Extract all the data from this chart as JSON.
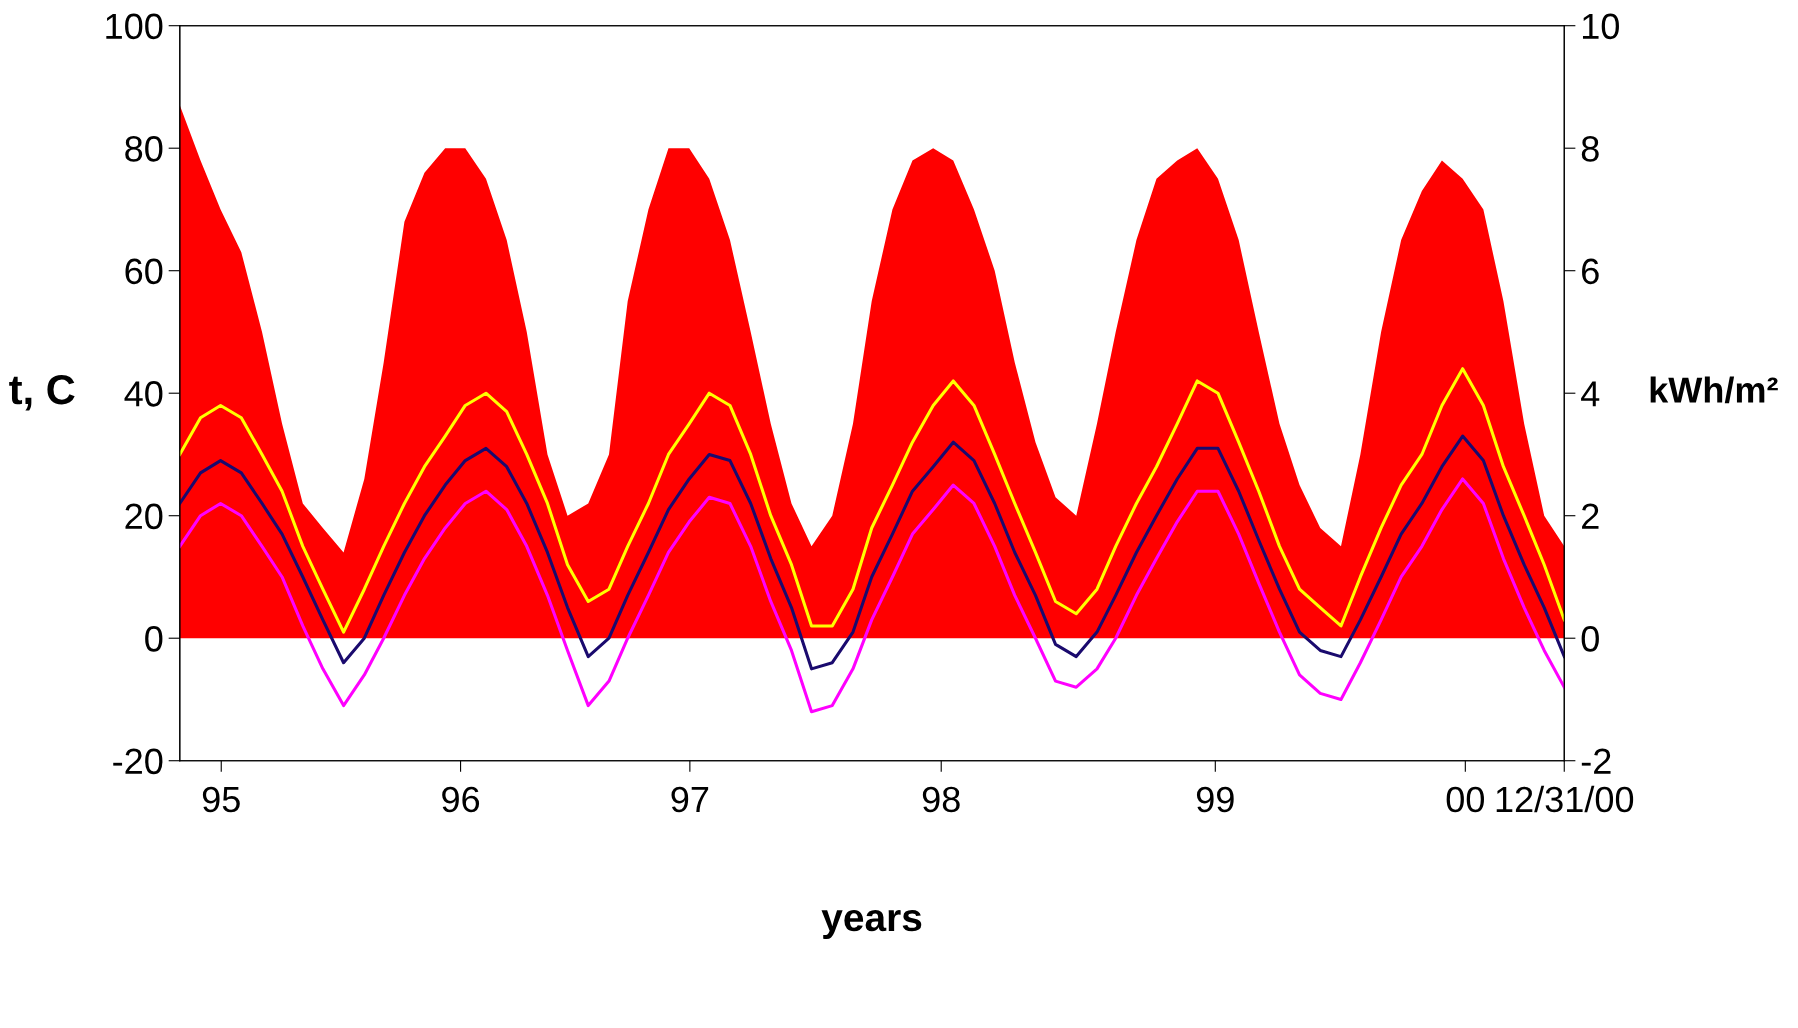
{
  "chart_data": {
    "type": "line",
    "xlabel": "years",
    "ylabel": "t, C",
    "y2label": "kWh/m²",
    "x": [
      "1995-05-01",
      "1995-06-01",
      "1995-07-01",
      "1995-08-01",
      "1995-09-01",
      "1995-10-01",
      "1995-11-01",
      "1995-12-01",
      "1996-01-01",
      "1996-02-01",
      "1996-03-01",
      "1996-04-01",
      "1996-05-01",
      "1996-06-01",
      "1996-07-01",
      "1996-08-01",
      "1996-09-01",
      "1996-10-01",
      "1996-11-01",
      "1996-12-01",
      "1997-01-01",
      "1997-02-01",
      "1997-03-01",
      "1997-04-01",
      "1997-05-01",
      "1997-06-01",
      "1997-07-01",
      "1997-08-01",
      "1997-09-01",
      "1997-10-01",
      "1997-11-01",
      "1997-12-01",
      "1998-01-01",
      "1998-02-01",
      "1998-03-01",
      "1998-04-01",
      "1998-05-01",
      "1998-06-01",
      "1998-07-01",
      "1998-08-01",
      "1998-09-01",
      "1998-10-01",
      "1998-11-01",
      "1998-12-01",
      "1999-01-01",
      "1999-02-01",
      "1999-03-01",
      "1999-04-01",
      "1999-05-01",
      "1999-06-01",
      "1999-07-01",
      "1999-08-01",
      "1999-09-01",
      "1999-10-01",
      "1999-11-01",
      "1999-12-01",
      "2000-01-01",
      "2000-02-01",
      "2000-03-01",
      "2000-04-01",
      "2000-05-01",
      "2000-06-01",
      "2000-07-01",
      "2000-08-01",
      "2000-09-01",
      "2000-10-01",
      "2000-11-01",
      "2000-12-01",
      "2000-12-31"
    ],
    "series": [
      {
        "type": "area",
        "axis": "y2",
        "color": "#ff0000",
        "values": [
          8.7,
          7.8,
          7.0,
          6.3,
          5.0,
          3.5,
          2.2,
          1.8,
          1.4,
          2.6,
          4.5,
          6.8,
          7.6,
          8.0,
          8.0,
          7.5,
          6.5,
          5.0,
          3.0,
          2.0,
          2.2,
          3.0,
          5.5,
          7.0,
          8.0,
          8.0,
          7.5,
          6.5,
          5.0,
          3.5,
          2.2,
          1.5,
          2.0,
          3.5,
          5.5,
          7.0,
          7.8,
          8.0,
          7.8,
          7.0,
          6.0,
          4.5,
          3.2,
          2.3,
          2.0,
          3.5,
          5.0,
          6.5,
          7.5,
          7.8,
          8.0,
          7.5,
          6.5,
          5.0,
          3.5,
          2.5,
          1.8,
          1.5,
          3.0,
          5.0,
          6.5,
          7.3,
          7.8,
          7.5,
          7.0,
          5.5,
          3.5,
          2.0,
          1.5
        ]
      },
      {
        "color": "#ffff00",
        "values": [
          30,
          36,
          38,
          36,
          30,
          24,
          15,
          8,
          1,
          8,
          15,
          22,
          28,
          33,
          38,
          40,
          37,
          30,
          22,
          12,
          6,
          8,
          15,
          22,
          30,
          35,
          40,
          38,
          30,
          20,
          12,
          2,
          2,
          8,
          18,
          25,
          32,
          38,
          42,
          38,
          30,
          22,
          14,
          6,
          4,
          8,
          15,
          22,
          28,
          35,
          42,
          40,
          32,
          24,
          15,
          8,
          5,
          2,
          10,
          18,
          25,
          30,
          38,
          44,
          38,
          28,
          20,
          12,
          3
        ]
      },
      {
        "color": "#1a0a6e",
        "values": [
          22,
          27,
          29,
          27,
          22,
          17,
          10,
          3,
          -4,
          0,
          7,
          14,
          20,
          25,
          29,
          31,
          28,
          22,
          14,
          5,
          -3,
          0,
          7,
          14,
          21,
          26,
          30,
          29,
          22,
          13,
          5,
          -5,
          -4,
          1,
          10,
          17,
          24,
          28,
          32,
          29,
          22,
          14,
          7,
          -1,
          -3,
          1,
          7,
          14,
          20,
          26,
          31,
          31,
          24,
          16,
          8,
          1,
          -2,
          -3,
          3,
          10,
          17,
          22,
          28,
          33,
          29,
          20,
          12,
          5,
          -3
        ]
      },
      {
        "color": "#ff00ff",
        "values": [
          15,
          20,
          22,
          20,
          15,
          10,
          2,
          -5,
          -11,
          -6,
          0,
          7,
          13,
          18,
          22,
          24,
          21,
          15,
          7,
          -2,
          -11,
          -7,
          0,
          7,
          14,
          19,
          23,
          22,
          15,
          6,
          -2,
          -12,
          -11,
          -5,
          3,
          10,
          17,
          21,
          25,
          22,
          15,
          7,
          0,
          -7,
          -8,
          -5,
          0,
          7,
          13,
          19,
          24,
          24,
          17,
          9,
          1,
          -6,
          -9,
          -10,
          -4,
          3,
          10,
          15,
          21,
          26,
          22,
          13,
          5,
          -2,
          -8
        ]
      }
    ],
    "xlim": [
      "1995-05-01",
      "2000-12-31"
    ],
    "xticks": [
      {
        "value": "1995-07-02",
        "label": "95"
      },
      {
        "value": "1996-06-24",
        "label": "96"
      },
      {
        "value": "1997-06-02",
        "label": "97"
      },
      {
        "value": "1998-06-13",
        "label": "98"
      },
      {
        "value": "1999-07-28",
        "label": "99"
      },
      {
        "value": "2000-08-05",
        "label": "00"
      },
      {
        "value": "2000-12-31",
        "label": "12/31/00"
      }
    ],
    "ylim": [
      -20,
      100
    ],
    "yticks": [
      -20,
      0,
      20,
      40,
      60,
      80,
      100
    ],
    "y2lim": [
      -2,
      10
    ],
    "y2ticks": [
      -2,
      0,
      2,
      4,
      6,
      8,
      10
    ]
  }
}
